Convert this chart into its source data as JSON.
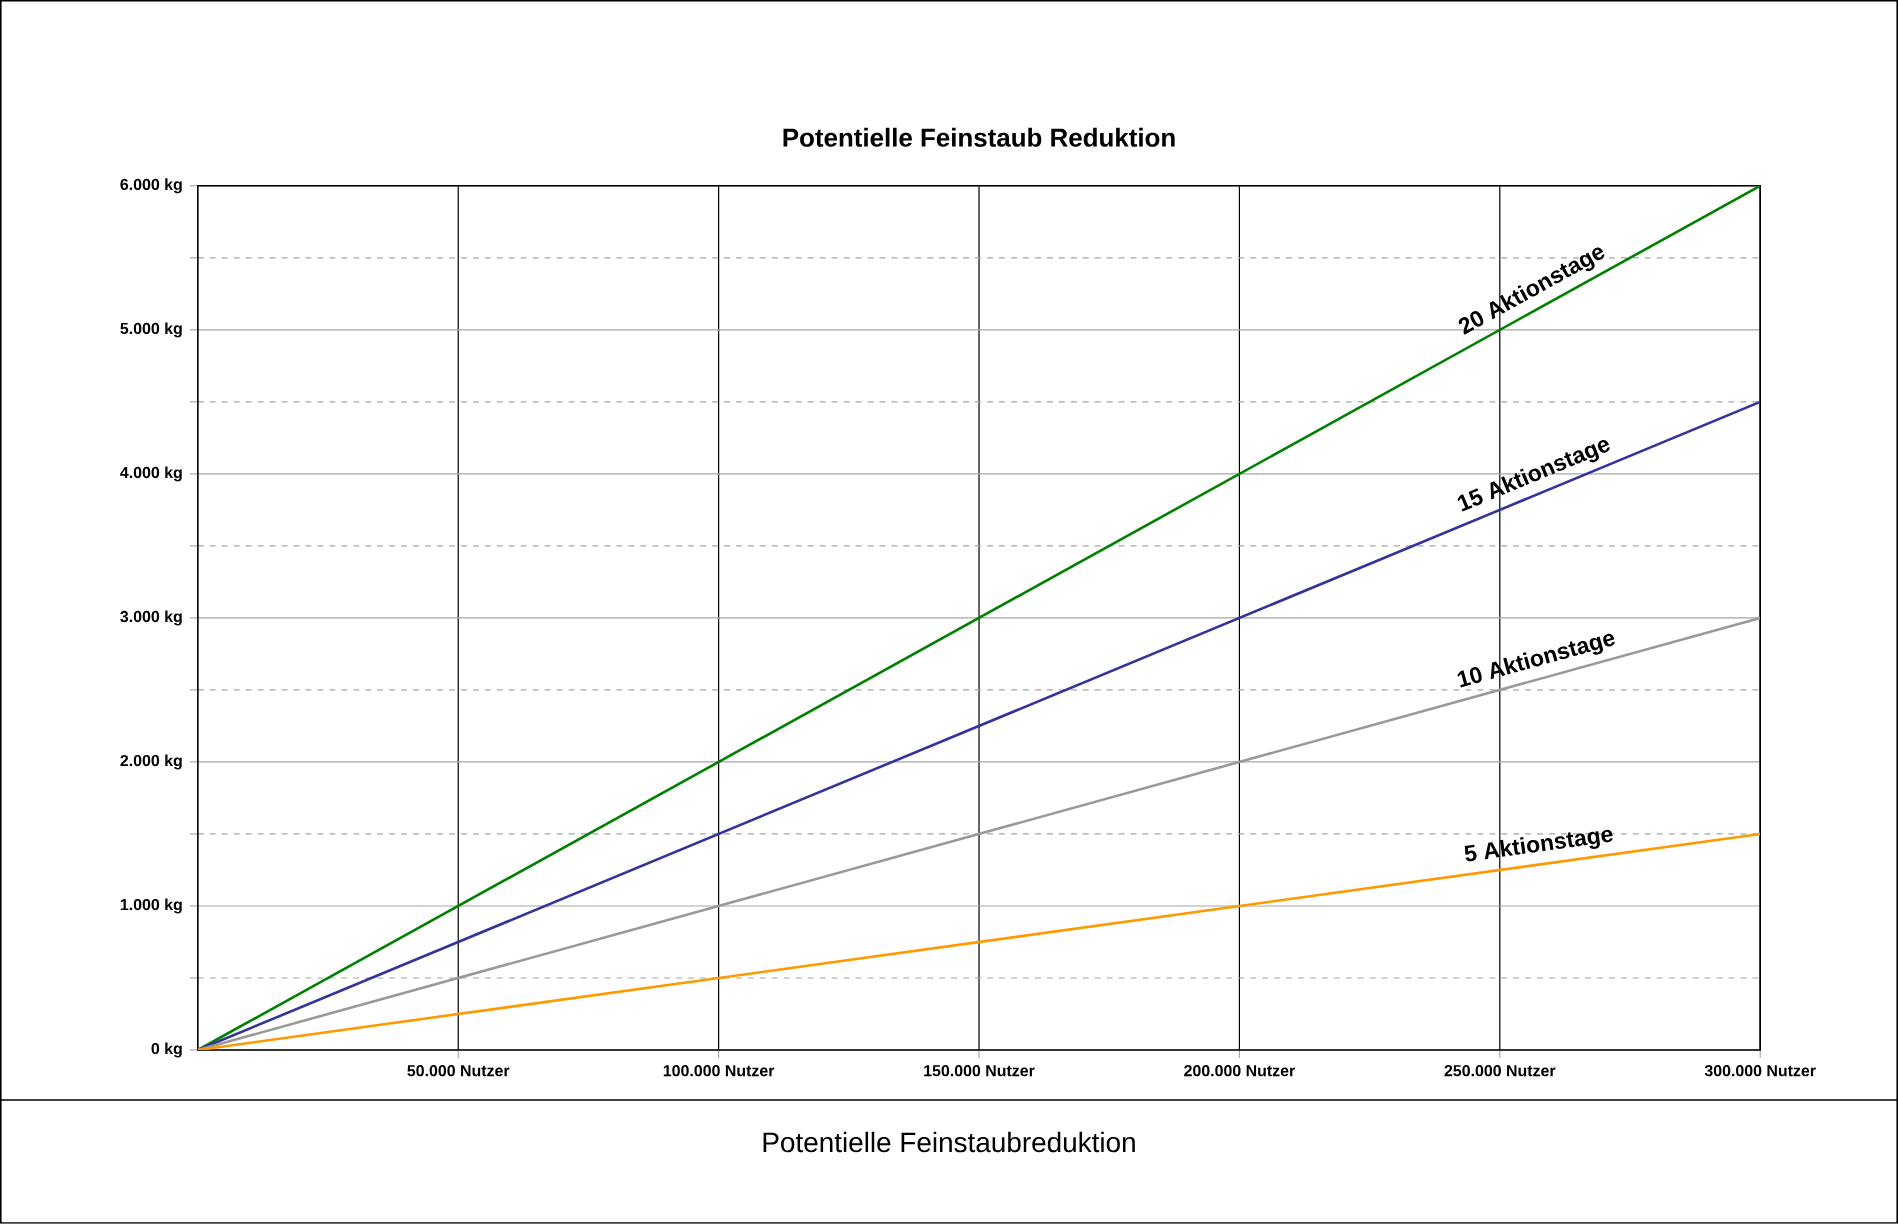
{
  "chart_data": {
    "type": "line",
    "title": "Potentielle Feinstaub Reduktion",
    "x": [
      0,
      50000,
      100000,
      150000,
      200000,
      250000,
      300000
    ],
    "series": [
      {
        "name": "20 Aktionstage",
        "color": "#008000",
        "values": [
          0,
          1000,
          2000,
          3000,
          4000,
          5000,
          6000
        ]
      },
      {
        "name": "15 Aktionstage",
        "color": "#333399",
        "values": [
          0,
          750,
          1500,
          2250,
          3000,
          3750,
          4500
        ]
      },
      {
        "name": "10 Aktionstage",
        "color": "#999999",
        "values": [
          0,
          500,
          1000,
          1500,
          2000,
          2500,
          3000
        ]
      },
      {
        "name": "5 Aktionstage",
        "color": "#ff9900",
        "values": [
          0,
          250,
          500,
          750,
          1000,
          1250,
          1500
        ]
      }
    ],
    "xlim": [
      0,
      300000
    ],
    "ylim": [
      0,
      6000
    ],
    "xticks": [
      {
        "value": 50000,
        "label": "50.000 Nutzer"
      },
      {
        "value": 100000,
        "label": "100.000 Nutzer"
      },
      {
        "value": 150000,
        "label": "150.000 Nutzer"
      },
      {
        "value": 200000,
        "label": "200.000 Nutzer"
      },
      {
        "value": 250000,
        "label": "250.000 Nutzer"
      },
      {
        "value": 300000,
        "label": "300.000 Nutzer"
      }
    ],
    "yticks": [
      {
        "value": 0,
        "label": "0 kg"
      },
      {
        "value": 500,
        "label": null
      },
      {
        "value": 1000,
        "label": "1.000 kg"
      },
      {
        "value": 1500,
        "label": null
      },
      {
        "value": 2000,
        "label": "2.000 kg"
      },
      {
        "value": 2500,
        "label": null
      },
      {
        "value": 3000,
        "label": "3.000 kg"
      },
      {
        "value": 3500,
        "label": null
      },
      {
        "value": 4000,
        "label": "4.000 kg"
      },
      {
        "value": 4500,
        "label": null
      },
      {
        "value": 5000,
        "label": "5.000 kg"
      },
      {
        "value": 5500,
        "label": null
      },
      {
        "value": 6000,
        "label": "6.000 kg"
      }
    ],
    "grid": true,
    "marker": "none",
    "line_style": "solid",
    "annotations": [
      "Potentielle Feinstaubreduktion"
    ]
  }
}
